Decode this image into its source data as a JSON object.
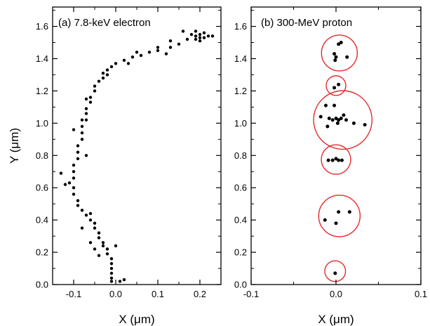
{
  "chart_data": [
    {
      "type": "scatter",
      "title": "(a) 7.8-keV electron",
      "xlabel": "X (μm)",
      "ylabel": "Y (μm)",
      "xlim": [
        -0.15,
        0.25
      ],
      "ylim": [
        0.0,
        1.72
      ],
      "x_ticks": [
        "-0.1",
        "0.0",
        "0.1",
        "0.2"
      ],
      "y_ticks": [
        "0.0",
        "0.2",
        "0.4",
        "0.6",
        "0.8",
        "1.0",
        "1.2",
        "1.4",
        "1.6"
      ],
      "marker_color": "#000000",
      "track_points": [
        [
          0.19,
          1.54
        ],
        [
          0.2,
          1.55
        ],
        [
          0.21,
          1.53
        ],
        [
          0.19,
          1.52
        ],
        [
          0.2,
          1.53
        ],
        [
          0.18,
          1.55
        ],
        [
          0.21,
          1.56
        ],
        [
          0.2,
          1.51
        ],
        [
          0.22,
          1.54
        ],
        [
          0.19,
          1.57
        ],
        [
          0.17,
          1.52
        ],
        [
          0.15,
          1.49
        ],
        [
          0.13,
          1.47
        ],
        [
          0.1,
          1.45
        ],
        [
          0.08,
          1.44
        ],
        [
          0.06,
          1.42
        ],
        [
          0.04,
          1.41
        ],
        [
          0.02,
          1.39
        ],
        [
          0.0,
          1.37
        ],
        [
          -0.01,
          1.35
        ],
        [
          -0.02,
          1.33
        ],
        [
          -0.03,
          1.31
        ],
        [
          -0.03,
          1.28
        ],
        [
          -0.04,
          1.26
        ],
        [
          -0.05,
          1.23
        ],
        [
          -0.05,
          1.2
        ],
        [
          -0.06,
          1.16
        ],
        [
          -0.06,
          1.13
        ],
        [
          -0.07,
          1.09
        ],
        [
          -0.07,
          1.06
        ],
        [
          -0.07,
          1.02
        ],
        [
          -0.08,
          0.98
        ],
        [
          -0.08,
          0.94
        ],
        [
          -0.08,
          0.9
        ],
        [
          -0.09,
          0.86
        ],
        [
          -0.09,
          0.82
        ],
        [
          -0.09,
          0.78
        ],
        [
          -0.1,
          0.74
        ],
        [
          -0.1,
          0.7
        ],
        [
          -0.1,
          0.66
        ],
        [
          -0.11,
          0.63
        ],
        [
          -0.1,
          0.6
        ],
        [
          -0.1,
          0.56
        ],
        [
          -0.09,
          0.52
        ],
        [
          -0.09,
          0.49
        ],
        [
          -0.08,
          0.46
        ],
        [
          -0.07,
          0.43
        ],
        [
          -0.06,
          0.4
        ],
        [
          -0.05,
          0.38
        ],
        [
          -0.05,
          0.35
        ],
        [
          -0.04,
          0.32
        ],
        [
          -0.04,
          0.29
        ],
        [
          -0.03,
          0.26
        ],
        [
          -0.03,
          0.24
        ],
        [
          -0.02,
          0.22
        ],
        [
          -0.02,
          0.19
        ],
        [
          -0.01,
          0.16
        ],
        [
          -0.01,
          0.13
        ],
        [
          -0.01,
          0.1
        ],
        [
          -0.01,
          0.07
        ],
        [
          -0.01,
          0.04
        ],
        [
          -0.01,
          0.02
        ],
        [
          0.01,
          0.02
        ],
        [
          0.1,
          1.47
        ],
        [
          0.12,
          1.43
        ],
        [
          0.05,
          1.44
        ],
        [
          0.03,
          1.37
        ],
        [
          -0.02,
          1.3
        ],
        [
          -0.07,
          1.15
        ],
        [
          -0.1,
          0.96
        ],
        [
          -0.13,
          0.69
        ],
        [
          -0.12,
          0.62
        ],
        [
          -0.07,
          0.8
        ],
        [
          -0.06,
          0.44
        ],
        [
          -0.08,
          0.35
        ],
        [
          -0.06,
          0.26
        ],
        [
          -0.05,
          0.22
        ],
        [
          0.0,
          0.24
        ],
        [
          -0.04,
          0.18
        ],
        [
          0.02,
          0.03
        ],
        [
          0.23,
          1.54
        ],
        [
          0.16,
          1.57
        ],
        [
          0.13,
          1.51
        ],
        [
          -0.08,
          1.02
        ]
      ]
    },
    {
      "type": "scatter",
      "title": "(b) 300-MeV proton",
      "xlabel": "X (μm)",
      "ylabel": "",
      "xlim": [
        -0.1,
        0.1
      ],
      "ylim": [
        0.0,
        1.72
      ],
      "x_ticks": [
        "-0.1",
        "0.0",
        "0.1"
      ],
      "y_ticks": [
        "0.0",
        "0.2",
        "0.4",
        "0.6",
        "0.8",
        "1.0",
        "1.2",
        "1.4",
        "1.6"
      ],
      "marker_color": "#000000",
      "circle_color": "#e32b2b",
      "clusters": [
        {
          "center": [
            0.004,
            1.435
          ],
          "radius": 0.095,
          "points": [
            [
              0.003,
              1.49
            ],
            [
              0.006,
              1.5
            ],
            [
              -0.002,
              1.43
            ],
            [
              0.0,
              1.41
            ],
            [
              0.013,
              1.41
            ],
            [
              -0.001,
              1.39
            ]
          ]
        },
        {
          "center": [
            0.0,
            1.233
          ],
          "radius": 0.052,
          "points": [
            [
              -0.002,
              1.22
            ],
            [
              0.003,
              1.24
            ]
          ]
        },
        {
          "center": [
            0.008,
            1.02
          ],
          "radius": 0.155,
          "points": [
            [
              -0.018,
              1.04
            ],
            [
              -0.012,
              1.11
            ],
            [
              -0.002,
              1.11
            ],
            [
              -0.008,
              1.03
            ],
            [
              -0.004,
              1.02
            ],
            [
              0.0,
              1.03
            ],
            [
              0.003,
              1.02
            ],
            [
              0.006,
              1.03
            ],
            [
              0.009,
              1.05
            ],
            [
              0.012,
              1.02
            ],
            [
              -0.01,
              0.98
            ],
            [
              0.021,
              1.0
            ],
            [
              0.034,
              0.99
            ],
            [
              0.002,
              1.0
            ]
          ]
        },
        {
          "center": [
            0.0,
            0.775
          ],
          "radius": 0.078,
          "points": [
            [
              -0.009,
              0.77
            ],
            [
              -0.004,
              0.77
            ],
            [
              0.0,
              0.78
            ],
            [
              0.003,
              0.77
            ],
            [
              0.007,
              0.77
            ]
          ]
        },
        {
          "center": [
            0.004,
            0.425
          ],
          "radius": 0.11,
          "points": [
            [
              -0.013,
              0.4
            ],
            [
              0.003,
              0.45
            ],
            [
              0.016,
              0.45
            ],
            [
              0.0,
              0.38
            ]
          ]
        },
        {
          "center": [
            -0.001,
            0.083
          ],
          "radius": 0.055,
          "points": [
            [
              -0.001,
              0.07
            ]
          ]
        }
      ]
    }
  ]
}
